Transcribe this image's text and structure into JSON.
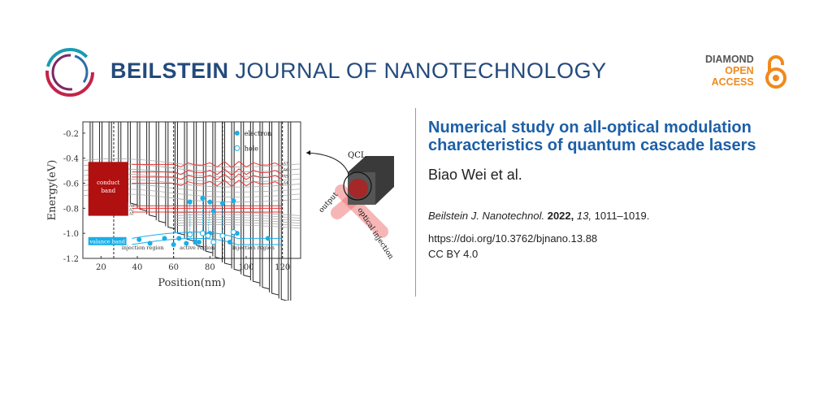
{
  "header": {
    "brand_bold": "BEILSTEIN",
    "brand_light": "JOURNAL OF NANOTECHNOLOGY",
    "open_access": {
      "line1": "DIAMOND",
      "line2": "OPEN",
      "line3": "ACCESS",
      "dark_color": "#555555",
      "accent_color": "#f08a1c"
    }
  },
  "article": {
    "title": "Numerical study on all-optical modulation characteristics of quantum cascade lasers",
    "authors": "Biao Wei et al.",
    "journal": "Beilstein J. Nanotechnol.",
    "year": "2022,",
    "volume": "13,",
    "pages": "1011–1019.",
    "doi": "https://doi.org/10.3762/bjnano.13.88",
    "license": "CC BY 4.0"
  },
  "figure": {
    "xlabel": "Position(nm)",
    "ylabel": "Energy(eV)",
    "xlim": [
      10,
      130
    ],
    "ylim": [
      -1.2,
      -0.11
    ],
    "xticks": [
      "20",
      "40",
      "60",
      "80",
      "100",
      "120"
    ],
    "xtick_values": [
      20,
      40,
      60,
      80,
      100,
      120
    ],
    "yticks": [
      "-0.2",
      "-0.4",
      "-0.6",
      "-0.8",
      "-1.0",
      "-1.2"
    ],
    "ytick_values": [
      -0.2,
      -0.4,
      -0.6,
      -0.8,
      -1.0,
      -1.2
    ],
    "legend": {
      "electron": "electron",
      "hole": "hole"
    },
    "conduct_band_label": [
      "conduct",
      "band"
    ],
    "valance_band_label": "valance band",
    "regions": [
      "injection region",
      "active region",
      "injection region"
    ],
    "level_labels_left": [
      "A3",
      "A2",
      "A1"
    ],
    "level_labels_right": [
      "A7",
      "A6",
      "A5",
      "A4"
    ],
    "electrons": [
      [
        69,
        -0.75
      ],
      [
        76,
        -0.72
      ],
      [
        80,
        -0.75
      ],
      [
        82,
        -0.82
      ],
      [
        87,
        -0.76
      ],
      [
        93,
        -0.74
      ],
      [
        41,
        -1.05
      ],
      [
        47,
        -1.08
      ],
      [
        55,
        -1.04
      ],
      [
        60,
        -1.09
      ],
      [
        63,
        -1.04
      ],
      [
        67,
        -1.08
      ],
      [
        72,
        -1.07
      ],
      [
        74,
        -1.07
      ],
      [
        80,
        -1.0
      ],
      [
        91,
        -1.07
      ],
      [
        95,
        -1.0
      ],
      [
        112,
        -1.04
      ]
    ],
    "holes": [
      [
        69,
        -1.01
      ],
      [
        76,
        -1.0
      ],
      [
        79,
        -1.02
      ],
      [
        82,
        -1.07
      ],
      [
        87,
        -1.02
      ],
      [
        93,
        -0.99
      ]
    ],
    "colors": {
      "conduct": "#b01010",
      "valance": "#1aaee8",
      "red_levels": "#ee3333"
    },
    "diagram": {
      "qcl": "QCL",
      "output": "output",
      "injection": "optical injection"
    }
  }
}
